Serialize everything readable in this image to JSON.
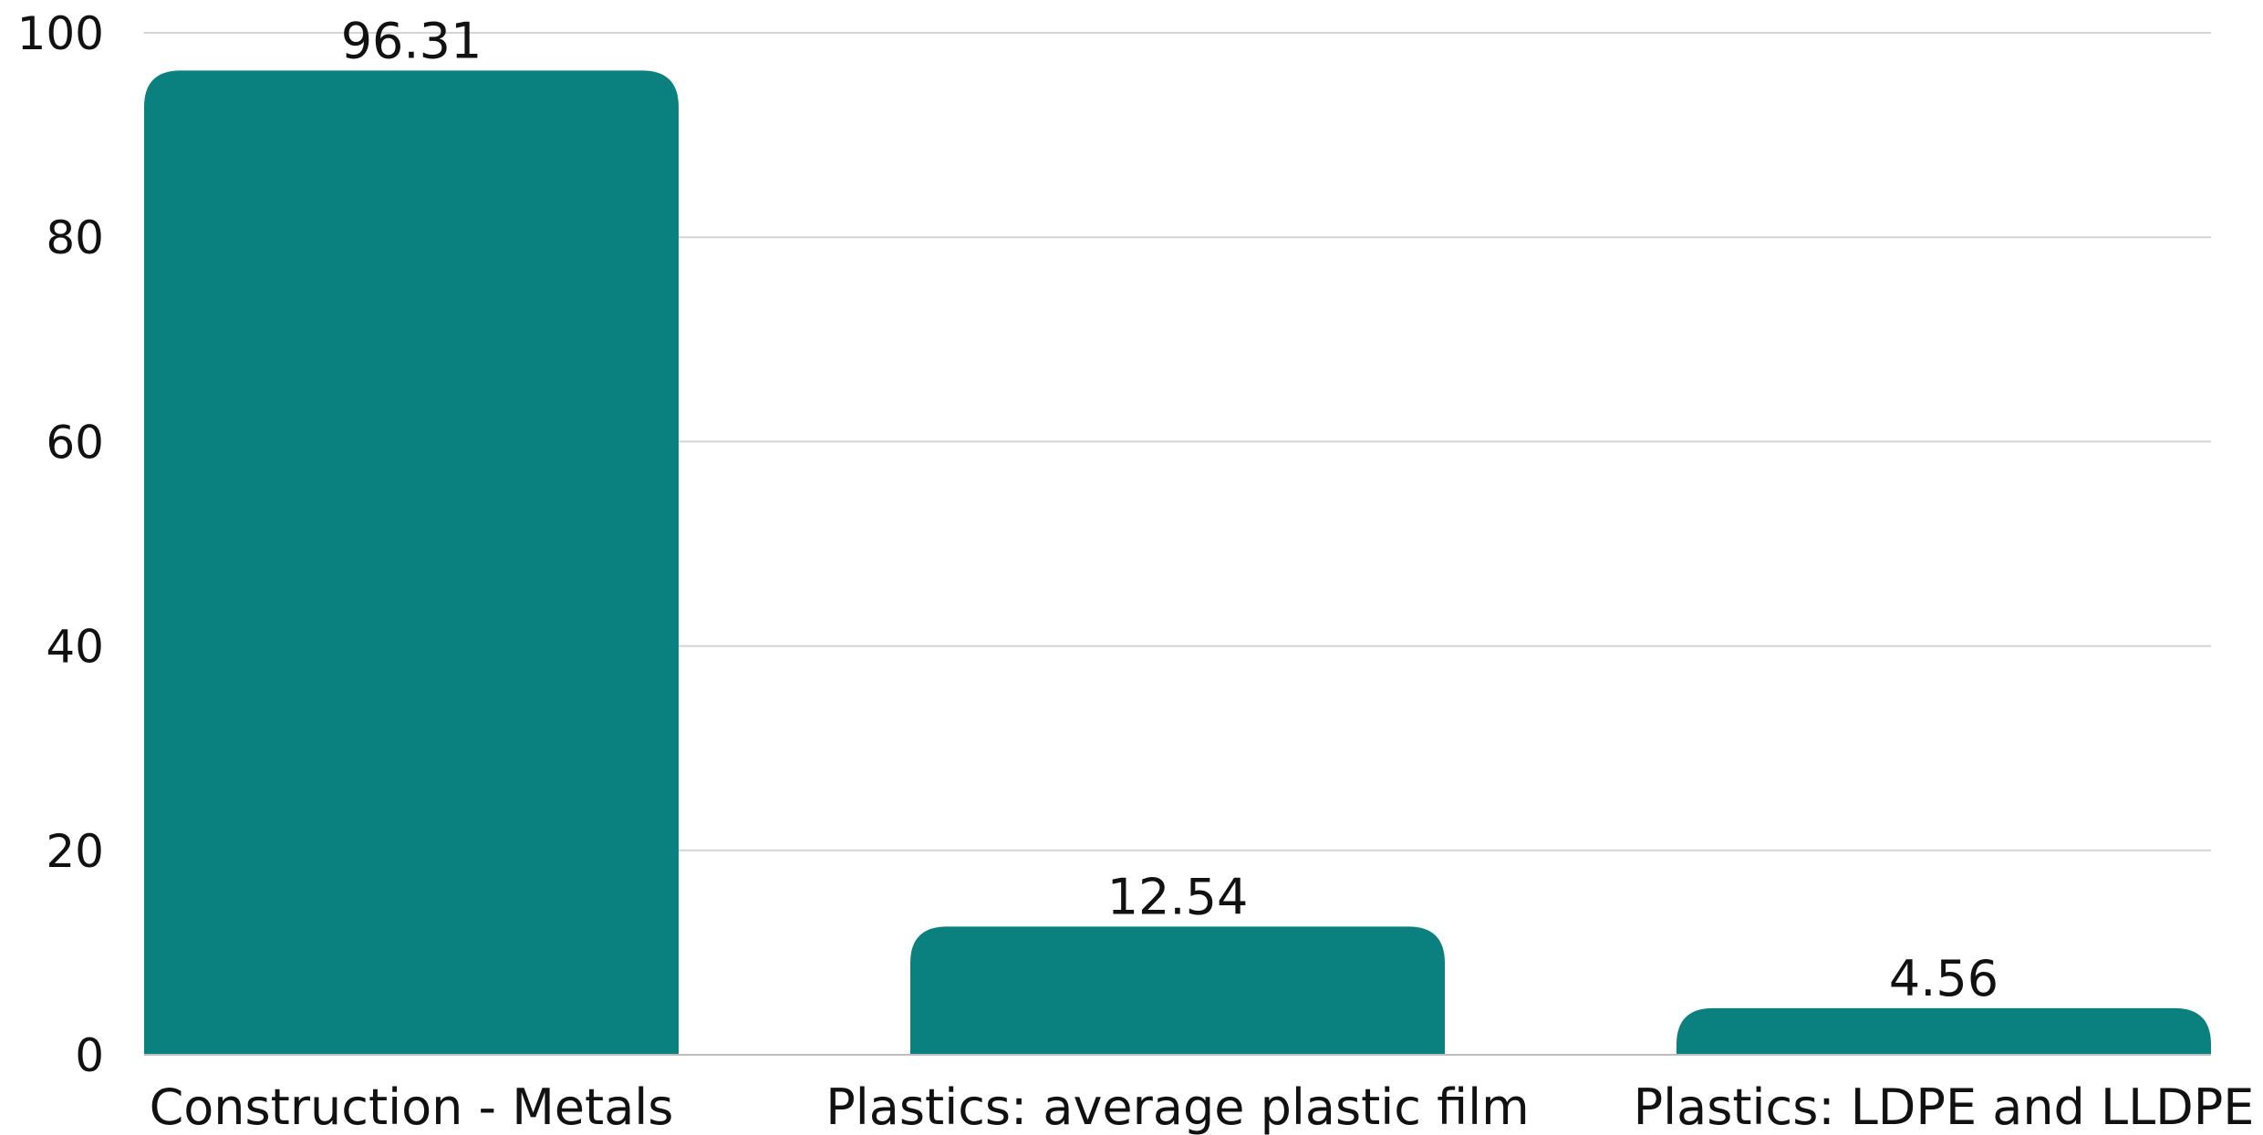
{
  "chart_data": {
    "type": "bar",
    "categories": [
      "Construction - Metals",
      "Plastics: average plastic film",
      "Plastics: LDPE and LLDPE"
    ],
    "values": [
      96.31,
      12.54,
      4.56
    ],
    "value_labels": [
      "96.31",
      "12.54",
      "4.56"
    ],
    "title": "",
    "xlabel": "",
    "ylabel": "",
    "ylim": [
      0,
      100
    ],
    "yticks": [
      0,
      20,
      40,
      60,
      80,
      100
    ],
    "ytick_labels": [
      "0",
      "20",
      "40",
      "60",
      "80",
      "100"
    ],
    "grid": true,
    "legend": "none",
    "colors": {
      "bar": "#0a817f"
    }
  }
}
